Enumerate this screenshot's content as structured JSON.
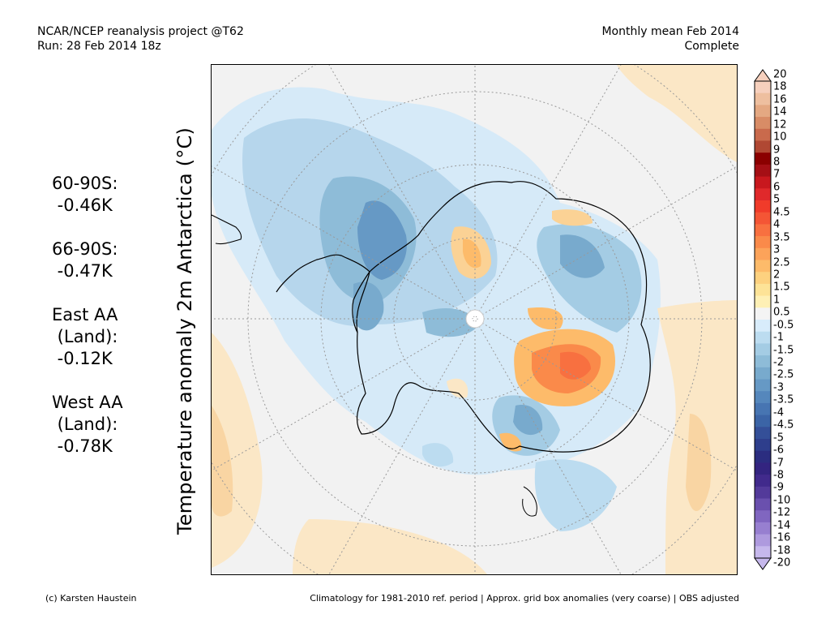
{
  "header": {
    "left_line1": "NCAR/NCEP reanalysis project @T62",
    "left_line2": "Run: 28 Feb 2014 18z",
    "right_line1": "Monthly mean Feb 2014",
    "right_line2": "Complete"
  },
  "map": {
    "ylabel": "Temperature anomaly 2m Antarctica (°C)",
    "projection": "south polar stereographic",
    "colors": {
      "background": "#f2f2f2",
      "coastline": "#000000",
      "graticule": "#999999",
      "land_white": "#ffffff"
    }
  },
  "stats": [
    {
      "label": "60-90S:",
      "value": " -0.46K"
    },
    {
      "label": "66-90S:",
      "value": " -0.47K"
    },
    {
      "label": "East AA",
      "label2": " (Land):",
      "value": " -0.12K"
    },
    {
      "label": "West AA",
      "label2": " (Land):",
      "value": " -0.78K"
    }
  ],
  "colorbar": {
    "labels": [
      "20",
      "18",
      "16",
      "14",
      "12",
      "10",
      "9",
      "8",
      "7",
      "6",
      "5",
      "4.5",
      "4",
      "3.5",
      "3",
      "2.5",
      "2",
      "1.5",
      "1",
      "0.5",
      "-0.5",
      "-1",
      "-1.5",
      "-2",
      "-2.5",
      "-3",
      "-3.5",
      "-4",
      "-4.5",
      "-5",
      "-6",
      "-7",
      "-8",
      "-9",
      "-10",
      "-12",
      "-14",
      "-16",
      "-18",
      "-20"
    ],
    "colors": [
      "#f6d0bd",
      "#eebf9f",
      "#e4a882",
      "#d88c66",
      "#c96a4c",
      "#b04833",
      "#8b0000",
      "#a50f15",
      "#c8181e",
      "#e0292b",
      "#f03b2a",
      "#f45535",
      "#f87040",
      "#fa8a4a",
      "#fca35a",
      "#fdbb6a",
      "#fdd17f",
      "#fde397",
      "#fef0b5",
      "#f4f4f4",
      "#d8ecfb",
      "#bcdcf0",
      "#a4cce4",
      "#8ebcd8",
      "#78aacd",
      "#6699c5",
      "#5587bc",
      "#4775b2",
      "#3b64a6",
      "#344f98",
      "#2e3e8c",
      "#2b2d80",
      "#332480",
      "#412a8c",
      "#533a9a",
      "#6a50ae",
      "#8066c0",
      "#977fd0",
      "#ae9ade",
      "#c6b8ec"
    ]
  },
  "footer": {
    "left": "(c) Karsten Haustein",
    "right": "Climatology for 1981-2010 ref. period | Approx. grid box anomalies (very coarse) | OBS adjusted"
  }
}
